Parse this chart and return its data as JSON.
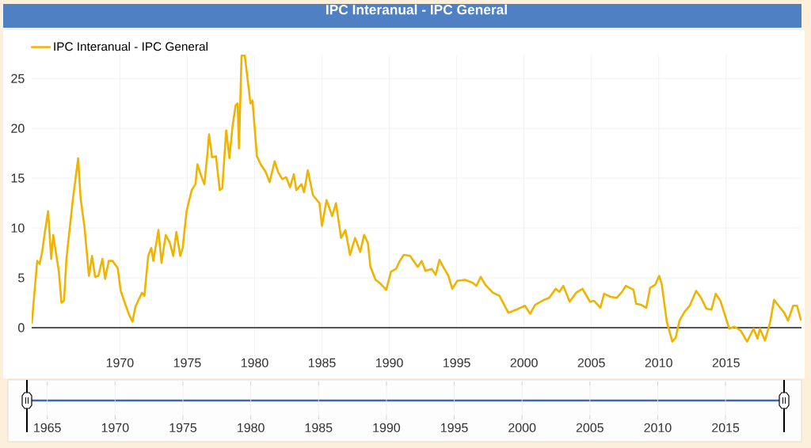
{
  "chart_data": {
    "type": "line",
    "title": "IPC Interanual - IPC General",
    "series": [
      {
        "name": "IPC Interanual - IPC General",
        "color": "#f0b400",
        "x": [
          1963.46,
          1963.86,
          1964.04,
          1964.24,
          1964.43,
          1964.67,
          1964.9,
          1965.05,
          1965.47,
          1965.66,
          1965.85,
          1966.03,
          1966.5,
          1966.9,
          1967.08,
          1967.37,
          1967.7,
          1967.93,
          1968.16,
          1968.4,
          1968.7,
          1968.9,
          1969.17,
          1969.45,
          1969.83,
          1970.06,
          1970.36,
          1970.68,
          1970.93,
          1971.15,
          1971.63,
          1971.82,
          1972.1,
          1972.33,
          1972.48,
          1972.86,
          1973.09,
          1973.4,
          1973.71,
          1973.96,
          1974.19,
          1974.48,
          1974.66,
          1974.95,
          1975.33,
          1975.61,
          1975.75,
          1976.09,
          1976.27,
          1976.5,
          1976.62,
          1976.84,
          1977.13,
          1977.41,
          1977.6,
          1977.89,
          1978.13,
          1978.36,
          1978.59,
          1978.74,
          1978.84,
          1979.03,
          1979.27,
          1979.5,
          1979.69,
          1979.84,
          1980.17,
          1980.45,
          1980.83,
          1981.11,
          1981.49,
          1981.75,
          1982.06,
          1982.34,
          1982.63,
          1982.91,
          1983.1,
          1983.48,
          1983.67,
          1983.95,
          1984.33,
          1984.81,
          1985.0,
          1985.34,
          1985.76,
          1986.04,
          1986.42,
          1986.74,
          1987.08,
          1987.46,
          1987.84,
          1988.13,
          1988.41,
          1988.6,
          1988.98,
          1989.36,
          1989.77,
          1990.12,
          1990.5,
          1990.78,
          1991.07,
          1991.54,
          1992.11,
          1992.4,
          1992.68,
          1993.15,
          1993.44,
          1993.72,
          1994.0,
          1994.39,
          1994.67,
          1995.05,
          1995.62,
          1996.18,
          1996.47,
          1996.79,
          1997.13,
          1997.7,
          1998.17,
          1998.84,
          1999.41,
          2000.07,
          2000.45,
          2000.83,
          2001.5,
          2001.87,
          2002.35,
          2002.63,
          2002.92,
          2003.39,
          2003.86,
          2004.34,
          2004.9,
          2005.19,
          2005.67,
          2005.95,
          2006.42,
          2006.9,
          2007.28,
          2007.56,
          2008.13,
          2008.32,
          2008.7,
          2009.08,
          2009.36,
          2009.74,
          2010.03,
          2010.22,
          2010.6,
          2011.01,
          2011.26,
          2011.54,
          2011.92,
          2012.3,
          2012.78,
          2013.15,
          2013.53,
          2013.91,
          2014.23,
          2014.58,
          2014.86,
          2015.24,
          2015.62,
          2016.09,
          2016.56,
          2017.04,
          2017.33,
          2017.51,
          2017.89,
          2018.28,
          2018.56,
          2018.84,
          2019.32,
          2019.6,
          2019.98,
          2020.27,
          2020.55
        ],
        "values": [
          0.5,
          6.7,
          6.4,
          7.7,
          9.6,
          11.7,
          6.9,
          9.3,
          5.6,
          2.5,
          2.7,
          6.9,
          12.8,
          17.0,
          13.0,
          10.1,
          5.2,
          7.2,
          5.1,
          5.2,
          6.9,
          4.9,
          6.7,
          6.7,
          6.0,
          3.7,
          2.5,
          1.3,
          0.6,
          2.1,
          3.5,
          3.2,
          7.2,
          8.0,
          6.7,
          9.8,
          6.5,
          9.3,
          8.5,
          7.2,
          9.6,
          7.2,
          8.0,
          11.7,
          13.8,
          14.4,
          16.4,
          15.0,
          14.4,
          17.5,
          19.4,
          17.1,
          17.2,
          13.8,
          14.0,
          19.8,
          17.0,
          20.2,
          22.3,
          22.5,
          18.0,
          27.3,
          27.3,
          24.7,
          22.5,
          22.8,
          17.2,
          16.4,
          15.6,
          14.6,
          16.7,
          15.6,
          14.9,
          15.1,
          14.1,
          15.4,
          13.8,
          14.4,
          13.6,
          15.8,
          13.3,
          12.5,
          10.2,
          12.8,
          11.2,
          12.5,
          9.0,
          9.8,
          7.3,
          9.0,
          7.6,
          9.3,
          8.5,
          6.1,
          4.8,
          4.4,
          3.8,
          5.6,
          5.9,
          6.7,
          7.3,
          7.2,
          6.1,
          6.7,
          5.7,
          5.9,
          5.3,
          6.8,
          6.1,
          5.2,
          3.9,
          4.7,
          4.8,
          4.5,
          4.2,
          5.1,
          4.3,
          3.5,
          3.2,
          1.5,
          1.8,
          2.2,
          1.4,
          2.3,
          2.8,
          3.0,
          3.9,
          3.6,
          4.2,
          2.6,
          3.5,
          3.9,
          2.6,
          2.7,
          2.0,
          3.4,
          3.1,
          3.0,
          3.6,
          4.2,
          3.8,
          2.4,
          2.3,
          2.0,
          4.0,
          4.3,
          5.2,
          4.4,
          0.6,
          -1.4,
          -1.0,
          0.7,
          1.6,
          2.2,
          3.7,
          3.0,
          1.9,
          1.8,
          3.4,
          2.7,
          1.5,
          -0.1,
          0.1,
          -0.3,
          -1.4,
          -0.1,
          -1.1,
          -0.1,
          -1.3,
          0.6,
          2.8,
          2.3,
          1.5,
          0.7,
          2.2,
          2.2,
          0.8
        ]
      }
    ],
    "xlim": [
      1963.45,
      2020.6
    ],
    "ylim": [
      -2.7,
      27.4
    ],
    "xticks": [
      1970,
      1975,
      1980,
      1985,
      1990,
      1995,
      2000,
      2005,
      2010,
      2015
    ],
    "yticks": [
      0,
      5,
      10,
      15,
      20,
      25
    ],
    "x2lim": [
      1963.85,
      2020.6
    ],
    "x2ticks": [
      1965,
      1970,
      1975,
      1980,
      1985,
      1990,
      1995,
      2000,
      2005,
      2010,
      2015
    ],
    "grid": true,
    "legend": "top left"
  }
}
